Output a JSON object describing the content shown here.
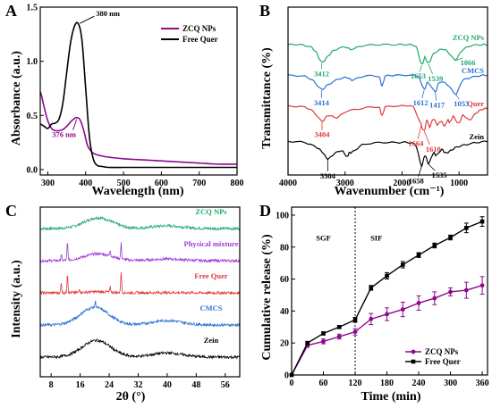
{
  "chart_data": [
    {
      "panel": "A",
      "type": "line",
      "xlabel": "Wavelength (nm)",
      "ylabel": "Absorbance (a.u.)",
      "xlim": [
        280,
        800
      ],
      "ylim": [
        -0.05,
        1.5
      ],
      "xticks": [
        300,
        400,
        500,
        600,
        700,
        800
      ],
      "yticks": [
        0.0,
        0.5,
        1.0,
        1.5
      ],
      "xtick_labels": [
        "300",
        "400",
        "500",
        "600",
        "700",
        "800"
      ],
      "ytick_labels": [
        "0.0",
        "0.5",
        "1.0",
        "1.5"
      ],
      "legend_position": "top-right",
      "series": [
        {
          "name": "ZCQ NPs",
          "color": "#8b0a8b",
          "x": [
            280,
            290,
            300,
            310,
            320,
            330,
            340,
            350,
            360,
            370,
            376,
            385,
            395,
            405,
            420,
            450,
            500,
            550,
            600,
            650,
            700,
            750,
            800
          ],
          "y": [
            0.72,
            0.58,
            0.45,
            0.38,
            0.36,
            0.36,
            0.37,
            0.4,
            0.44,
            0.47,
            0.48,
            0.46,
            0.36,
            0.22,
            0.15,
            0.12,
            0.1,
            0.09,
            0.08,
            0.07,
            0.06,
            0.05,
            0.05
          ]
        },
        {
          "name": "Free Quer",
          "color": "#000000",
          "x": [
            280,
            290,
            300,
            310,
            320,
            330,
            340,
            350,
            360,
            370,
            380,
            390,
            400,
            410,
            420,
            430,
            440,
            460,
            500,
            600,
            800
          ],
          "y": [
            0.42,
            0.4,
            0.38,
            0.42,
            0.43,
            0.47,
            0.62,
            0.9,
            1.17,
            1.32,
            1.35,
            1.2,
            0.75,
            0.3,
            0.1,
            0.04,
            0.03,
            0.02,
            0.02,
            0.02,
            0.02
          ]
        }
      ],
      "annotations": [
        {
          "text": "380 nm",
          "x": 380,
          "y": 1.35,
          "color": "#000000"
        },
        {
          "text": "376 nm",
          "x": 376,
          "y": 0.48,
          "color": "#8b0a8b"
        }
      ]
    },
    {
      "panel": "B",
      "type": "line",
      "xlabel": "Wavenumber (cm⁻¹)",
      "ylabel": "Transmittance (%)",
      "xlim": [
        4000,
        500
      ],
      "xticks": [
        4000,
        3000,
        2000,
        1000
      ],
      "xtick_labels": [
        "4000",
        "3000",
        "2000",
        "1000"
      ],
      "series": [
        {
          "name": "ZCQ NPs",
          "label": "ZCQ NPs",
          "color": "#1fa96b",
          "offset": 4,
          "x": [
            4000,
            3800,
            3600,
            3500,
            3412,
            3300,
            3200,
            3000,
            2900,
            2700,
            2400,
            2100,
            1900,
            1750,
            1653,
            1600,
            1539,
            1450,
            1300,
            1200,
            1066,
            950,
            800,
            600,
            500
          ],
          "y": [
            0.5,
            0.5,
            0.4,
            0.15,
            -0.25,
            0.0,
            0.25,
            0.4,
            0.3,
            0.45,
            0.5,
            0.5,
            0.5,
            0.4,
            -0.35,
            -0.05,
            -0.3,
            0.1,
            0.3,
            0.2,
            -0.15,
            0.25,
            0.45,
            0.5,
            0.5
          ]
        },
        {
          "name": "CMCS",
          "label": "CMCS",
          "color": "#2b72d1",
          "offset": 3,
          "x": [
            4000,
            3700,
            3550,
            3414,
            3300,
            3100,
            2950,
            2880,
            2700,
            2400,
            2350,
            2300,
            2100,
            1800,
            1700,
            1612,
            1550,
            1417,
            1350,
            1200,
            1053,
            950,
            800,
            600,
            500
          ],
          "y": [
            0.6,
            0.55,
            0.35,
            0.0,
            0.2,
            0.45,
            0.5,
            0.4,
            0.55,
            0.55,
            0.15,
            0.55,
            0.6,
            0.6,
            0.5,
            0.0,
            0.3,
            -0.1,
            0.3,
            0.2,
            -0.2,
            0.35,
            0.5,
            0.6,
            0.6
          ]
        },
        {
          "name": "Quer",
          "label": "Quer",
          "color": "#e03a3a",
          "offset": 2,
          "x": [
            4000,
            3700,
            3550,
            3404,
            3300,
            3150,
            3000,
            2700,
            2400,
            2350,
            2300,
            2000,
            1800,
            1664,
            1610,
            1560,
            1520,
            1450,
            1380,
            1320,
            1250,
            1200,
            1160,
            1100,
            1010,
            930,
            820,
            700,
            600,
            500
          ],
          "y": [
            0.7,
            0.65,
            0.45,
            0.05,
            0.3,
            0.2,
            0.45,
            0.6,
            0.65,
            0.3,
            0.65,
            0.7,
            0.65,
            -0.1,
            -0.35,
            0.1,
            -0.2,
            0.15,
            -0.1,
            0.05,
            -0.15,
            0.1,
            0.0,
            0.25,
            -0.05,
            0.3,
            0.1,
            0.4,
            0.55,
            0.6
          ]
        },
        {
          "name": "Zein",
          "label": "Zein",
          "color": "#000000",
          "offset": 1,
          "x": [
            4000,
            3700,
            3500,
            3400,
            3304,
            3200,
            3060,
            2960,
            2930,
            2870,
            2700,
            2400,
            2100,
            1900,
            1750,
            1658,
            1600,
            1535,
            1450,
            1400,
            1300,
            1240,
            1150,
            1050,
            900,
            700,
            500
          ],
          "y": [
            0.6,
            0.55,
            0.35,
            0.15,
            -0.15,
            0.05,
            0.2,
            -0.05,
            0.1,
            0.15,
            0.45,
            0.55,
            0.55,
            0.55,
            0.4,
            -0.45,
            0.0,
            -0.35,
            0.1,
            0.0,
            0.25,
            0.1,
            0.2,
            0.35,
            0.45,
            0.55,
            0.6
          ]
        }
      ],
      "annotations": [
        {
          "text": "3412",
          "color": "#1fa96b"
        },
        {
          "text": "1653",
          "color": "#1fa96b"
        },
        {
          "text": "1539",
          "color": "#1fa96b"
        },
        {
          "text": "1066",
          "color": "#1fa96b"
        },
        {
          "text": "3414",
          "color": "#2b72d1"
        },
        {
          "text": "1612",
          "color": "#2b72d1"
        },
        {
          "text": "1417",
          "color": "#2b72d1"
        },
        {
          "text": "1053",
          "color": "#2b72d1"
        },
        {
          "text": "3404",
          "color": "#e03a3a"
        },
        {
          "text": "1664",
          "color": "#e03a3a"
        },
        {
          "text": "1610",
          "color": "#e03a3a"
        },
        {
          "text": "3304",
          "color": "#000000"
        },
        {
          "text": "1658",
          "color": "#000000"
        },
        {
          "text": "1535",
          "color": "#000000"
        }
      ]
    },
    {
      "panel": "C",
      "type": "line",
      "xlabel": "2θ (°)",
      "ylabel": "Intensity (a.u.)",
      "xlim": [
        5,
        60
      ],
      "xticks": [
        8,
        16,
        24,
        32,
        40,
        48,
        56
      ],
      "xtick_labels": [
        "8",
        "16",
        "24",
        "32",
        "40",
        "48",
        "56"
      ],
      "series": [
        {
          "name": "ZCQ NPs",
          "label": "ZCQ NPs",
          "color": "#1fa96b",
          "offset": 5,
          "broad_center": 21,
          "broad_height": 0.55,
          "peaks": []
        },
        {
          "name": "Physical mixture",
          "label": "Physical mixture",
          "color": "#a23bd8",
          "offset": 4,
          "broad_center": 21,
          "broad_height": 0.35,
          "peaks": [
            [
              12.5,
              0.9
            ],
            [
              10.8,
              0.3
            ],
            [
              27.3,
              0.8
            ],
            [
              24.3,
              0.3
            ]
          ]
        },
        {
          "name": "Free Quer",
          "label": "Free Quer",
          "color": "#e03a3a",
          "offset": 3,
          "broad_center": 21,
          "broad_height": 0.05,
          "peaks": [
            [
              10.8,
              0.5
            ],
            [
              12.5,
              1.0
            ],
            [
              27.3,
              1.1
            ],
            [
              24.3,
              0.25
            ],
            [
              15.8,
              0.2
            ]
          ]
        },
        {
          "name": "CMCS",
          "label": "CMCS",
          "color": "#2b72d1",
          "offset": 2,
          "broad_center": 20.0,
          "broad_height": 0.9,
          "peaks": [
            [
              20.2,
              0.3
            ]
          ]
        },
        {
          "name": "Zein",
          "label": "Zein",
          "color": "#000000",
          "offset": 1,
          "broad_center": 20.5,
          "broad_height": 0.85,
          "peaks": []
        }
      ]
    },
    {
      "panel": "D",
      "type": "line",
      "xlabel": "Time (min)",
      "ylabel": "Cumulative release (%)",
      "xlim": [
        0,
        370
      ],
      "ylim": [
        0,
        105
      ],
      "xticks": [
        0,
        60,
        120,
        180,
        240,
        300,
        360
      ],
      "yticks": [
        0,
        20,
        40,
        60,
        80,
        100
      ],
      "xtick_labels": [
        "0",
        "60",
        "120",
        "180",
        "240",
        "300",
        "360"
      ],
      "ytick_labels": [
        "0",
        "20",
        "40",
        "60",
        "80",
        "100"
      ],
      "legend_position": "bottom-right",
      "phase_labels": [
        "SGF",
        "SIF"
      ],
      "phase_divider_x": 120,
      "series": [
        {
          "name": "ZCQ NPs",
          "color": "#8b0a8b",
          "marker": "circle",
          "x": [
            0,
            30,
            60,
            90,
            120,
            150,
            180,
            210,
            240,
            270,
            300,
            330,
            360
          ],
          "y": [
            0,
            18.5,
            21,
            24,
            27,
            35,
            38,
            41,
            45,
            48,
            52,
            53,
            56
          ],
          "err": [
            0,
            1.2,
            1.5,
            1.5,
            2,
            3.5,
            4,
            4.5,
            4.5,
            4,
            2.5,
            5,
            5.5
          ]
        },
        {
          "name": "Free Quer",
          "color": "#000000",
          "marker": "square",
          "x": [
            0,
            30,
            60,
            90,
            120,
            150,
            180,
            210,
            240,
            270,
            300,
            330,
            360
          ],
          "y": [
            0,
            20,
            26,
            30,
            34.5,
            54.5,
            62,
            69,
            75,
            81,
            86,
            92,
            96
          ],
          "err": [
            0,
            1,
            1,
            1,
            1.5,
            1.5,
            2,
            2,
            1.5,
            1.5,
            1.5,
            3,
            3
          ]
        }
      ]
    }
  ]
}
